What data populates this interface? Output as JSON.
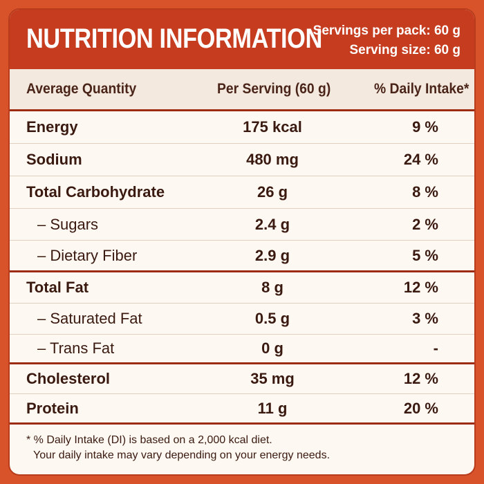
{
  "header": {
    "title": "NUTRITION INFORMATION",
    "servings_per_pack": "Servings per pack: 60 g",
    "serving_size": "Serving size: 60 g"
  },
  "columns": {
    "name": "Average Quantity",
    "per_serving": "Per Serving (60 g)",
    "daily": "% Daily Intake*"
  },
  "rows": [
    {
      "name": "Energy",
      "value": "175 kcal",
      "daily": "9 %"
    },
    {
      "name": "Sodium",
      "value": "480 mg",
      "daily": "24 %"
    },
    {
      "name": "Total Carbohydrate",
      "value": "26 g",
      "daily": "8 %"
    },
    {
      "name": "– Sugars",
      "value": "2.4 g",
      "daily": "2 %"
    },
    {
      "name": "– Dietary Fiber",
      "value": "2.9 g",
      "daily": "5 %"
    },
    {
      "name": "Total Fat",
      "value": "8 g",
      "daily": "12 %"
    },
    {
      "name": "– Saturated Fat",
      "value": "0.5 g",
      "daily": "3 %"
    },
    {
      "name": "– Trans Fat",
      "value": "0 g",
      "daily": "-"
    },
    {
      "name": "Cholesterol",
      "value": "35 mg",
      "daily": "12 %"
    },
    {
      "name": "Protein",
      "value": "11 g",
      "daily": "20 %"
    }
  ],
  "footer": {
    "line1": "* % Daily Intake (DI) is based on a 2,000 kcal diet.",
    "line2": "Your daily intake may vary depending on your energy needs."
  },
  "colors": {
    "background": "#d8532a",
    "header": "#c63c1f",
    "panel": "#fdf8f1",
    "text": "#3a1a10"
  }
}
